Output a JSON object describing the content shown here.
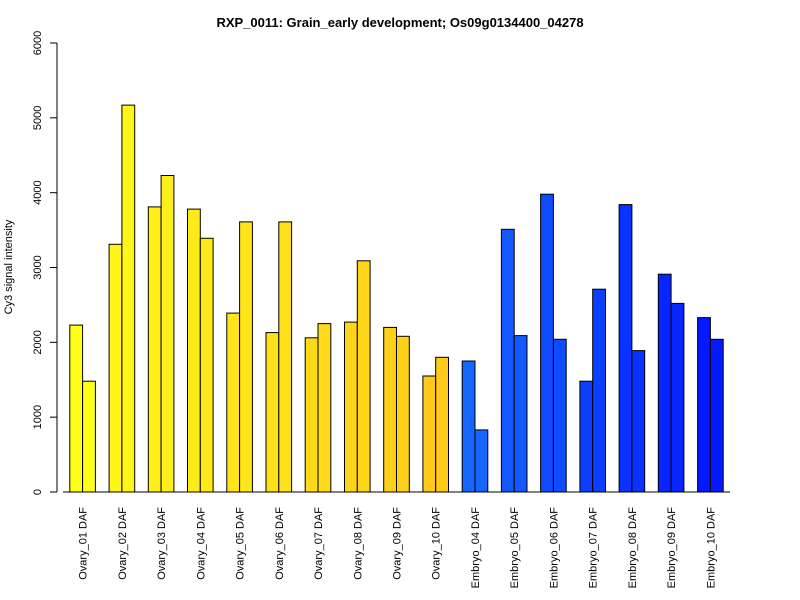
{
  "chart_data": {
    "type": "bar",
    "title": "RXP_0011: Grain_early development; Os09g0134400_04278",
    "xlabel": "",
    "ylabel": "Cy3 signal intensity",
    "ylim": [
      0,
      6000
    ],
    "yticks": [
      0,
      1000,
      2000,
      3000,
      4000,
      5000,
      6000
    ],
    "grid": false,
    "legend": "none",
    "categories": [
      "Ovary_01 DAF",
      "Ovary_02 DAF",
      "Ovary_03 DAF",
      "Ovary_04 DAF",
      "Ovary_05 DAF",
      "Ovary_06 DAF",
      "Ovary_07 DAF",
      "Ovary_08 DAF",
      "Ovary_09 DAF",
      "Ovary_10 DAF",
      "Embryo_04 DAF",
      "Embryo_05 DAF",
      "Embryo_06 DAF",
      "Embryo_07 DAF",
      "Embryo_08 DAF",
      "Embryo_09 DAF",
      "Embryo_10 DAF"
    ],
    "series": [
      {
        "values": [
          2230,
          3310,
          3810,
          3780,
          2390,
          2130,
          2060,
          2270,
          2200,
          1550,
          1750,
          3510,
          3980,
          1480,
          3840,
          2910,
          2330
        ]
      },
      {
        "values": [
          1480,
          5170,
          4230,
          3390,
          3610,
          3610,
          2250,
          3090,
          2080,
          1800,
          830,
          2090,
          2040,
          2710,
          1890,
          2520,
          2040
        ]
      }
    ],
    "colors": [
      "#ffff19",
      "#fff519",
      "#ffef19",
      "#ffea19",
      "#ffe519",
      "#ffe019",
      "#ffda19",
      "#ffd519",
      "#ffd019",
      "#ffca19",
      "#1565ff",
      "#1458ff",
      "#104cff",
      "#0c3fff",
      "#0a33ff",
      "#0726ff",
      "#0419ff"
    ]
  }
}
